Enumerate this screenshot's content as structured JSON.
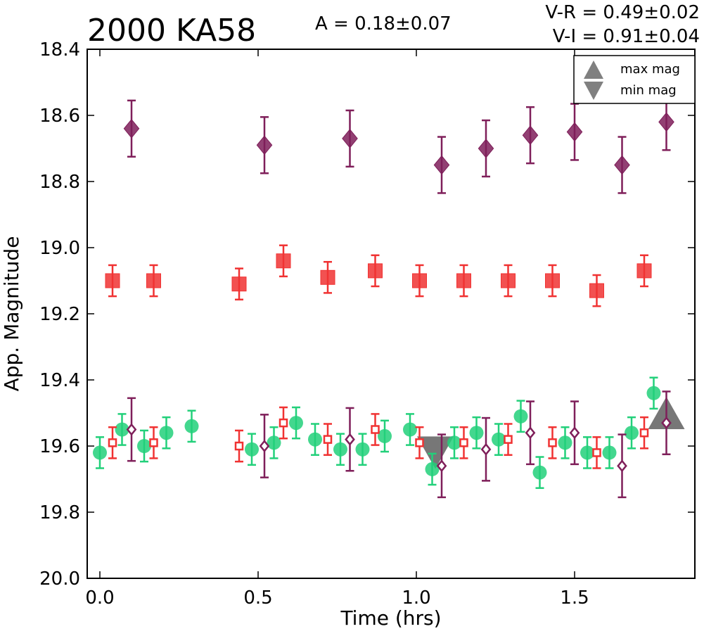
{
  "chart_data": {
    "type": "scatter",
    "title": "2000 KA58",
    "annotations": {
      "amplitude": "A  = 0.18±0.07",
      "v_r": "V-R = 0.49±0.02",
      "v_i": "V-I  = 0.91±0.04"
    },
    "xlabel": "Time (hrs)",
    "ylabel": "App. Magnitude",
    "xlim": [
      -0.04,
      1.88
    ],
    "ylim": [
      18.4,
      20.0
    ],
    "y_inverted": true,
    "x_ticks": [
      "0.0",
      "0.5",
      "1.0",
      "1.5"
    ],
    "x_tick_values": [
      0.0,
      0.5,
      1.0,
      1.5
    ],
    "y_ticks": [
      "18.4",
      "18.6",
      "18.8",
      "19.0",
      "19.2",
      "19.4",
      "19.6",
      "19.8",
      "20.0"
    ],
    "y_tick_values": [
      18.4,
      18.6,
      18.8,
      19.0,
      19.2,
      19.4,
      19.6,
      19.8,
      20.0
    ],
    "grid": false,
    "legend_placement": "top-right",
    "series": [
      {
        "color": "#7f1f5a",
        "marker": "diamond",
        "filled": true,
        "points": [
          [
            0.1,
            18.64,
            0.085
          ],
          [
            0.52,
            18.69,
            0.085
          ],
          [
            0.79,
            18.67,
            0.085
          ],
          [
            1.08,
            18.75,
            0.085
          ],
          [
            1.22,
            18.7,
            0.085
          ],
          [
            1.36,
            18.66,
            0.085
          ],
          [
            1.5,
            18.65,
            0.085
          ],
          [
            1.65,
            18.75,
            0.085
          ],
          [
            1.79,
            18.62,
            0.085
          ]
        ]
      },
      {
        "color": "#f03232",
        "marker": "square",
        "filled": true,
        "points": [
          [
            0.04,
            19.1,
            0.047
          ],
          [
            0.17,
            19.1,
            0.047
          ],
          [
            0.44,
            19.11,
            0.047
          ],
          [
            0.58,
            19.04,
            0.047
          ],
          [
            0.72,
            19.09,
            0.047
          ],
          [
            0.87,
            19.07,
            0.047
          ],
          [
            1.01,
            19.1,
            0.047
          ],
          [
            1.15,
            19.1,
            0.047
          ],
          [
            1.29,
            19.1,
            0.047
          ],
          [
            1.43,
            19.1,
            0.047
          ],
          [
            1.57,
            19.13,
            0.047
          ],
          [
            1.72,
            19.07,
            0.047
          ]
        ]
      },
      {
        "color": "#22d07a",
        "marker": "circle",
        "filled": true,
        "points": [
          [
            0.0,
            19.62,
            0.047
          ],
          [
            0.07,
            19.55,
            0.047
          ],
          [
            0.14,
            19.6,
            0.047
          ],
          [
            0.21,
            19.56,
            0.047
          ],
          [
            0.29,
            19.54,
            0.047
          ],
          [
            0.48,
            19.61,
            0.047
          ],
          [
            0.55,
            19.59,
            0.047
          ],
          [
            0.62,
            19.53,
            0.047
          ],
          [
            0.68,
            19.58,
            0.047
          ],
          [
            0.76,
            19.61,
            0.047
          ],
          [
            0.83,
            19.61,
            0.047
          ],
          [
            0.9,
            19.57,
            0.047
          ],
          [
            0.98,
            19.55,
            0.047
          ],
          [
            1.05,
            19.67,
            0.047
          ],
          [
            1.12,
            19.59,
            0.047
          ],
          [
            1.19,
            19.56,
            0.047
          ],
          [
            1.26,
            19.58,
            0.047
          ],
          [
            1.33,
            19.51,
            0.047
          ],
          [
            1.39,
            19.68,
            0.047
          ],
          [
            1.47,
            19.59,
            0.047
          ],
          [
            1.54,
            19.62,
            0.047
          ],
          [
            1.61,
            19.62,
            0.047
          ],
          [
            1.68,
            19.56,
            0.047
          ],
          [
            1.75,
            19.44,
            0.047
          ]
        ]
      },
      {
        "color": "#f03232",
        "marker": "square",
        "filled": false,
        "points": [
          [
            0.04,
            19.59,
            0.047
          ],
          [
            0.17,
            19.59,
            0.047
          ],
          [
            0.44,
            19.6,
            0.047
          ],
          [
            0.58,
            19.53,
            0.047
          ],
          [
            0.72,
            19.58,
            0.047
          ],
          [
            0.87,
            19.55,
            0.047
          ],
          [
            1.01,
            19.59,
            0.047
          ],
          [
            1.15,
            19.59,
            0.047
          ],
          [
            1.29,
            19.58,
            0.047
          ],
          [
            1.43,
            19.59,
            0.047
          ],
          [
            1.57,
            19.62,
            0.047
          ],
          [
            1.72,
            19.56,
            0.047
          ]
        ]
      },
      {
        "color": "#7f1f5a",
        "marker": "diamond",
        "filled": false,
        "points": [
          [
            0.1,
            19.55,
            0.095
          ],
          [
            0.52,
            19.6,
            0.095
          ],
          [
            0.79,
            19.58,
            0.095
          ],
          [
            1.08,
            19.66,
            0.095
          ],
          [
            1.22,
            19.61,
            0.095
          ],
          [
            1.36,
            19.56,
            0.095
          ],
          [
            1.5,
            19.56,
            0.095
          ],
          [
            1.65,
            19.66,
            0.095
          ],
          [
            1.79,
            19.53,
            0.095
          ]
        ]
      }
    ],
    "extrema": [
      {
        "kind": "max",
        "x": 1.79,
        "y": 19.5,
        "color": "#707070"
      },
      {
        "kind": "min",
        "x": 1.06,
        "y": 19.62,
        "color": "#707070"
      }
    ],
    "legend": [
      {
        "kind": "max",
        "label": "max mag"
      },
      {
        "kind": "min",
        "label": "min mag"
      }
    ]
  }
}
